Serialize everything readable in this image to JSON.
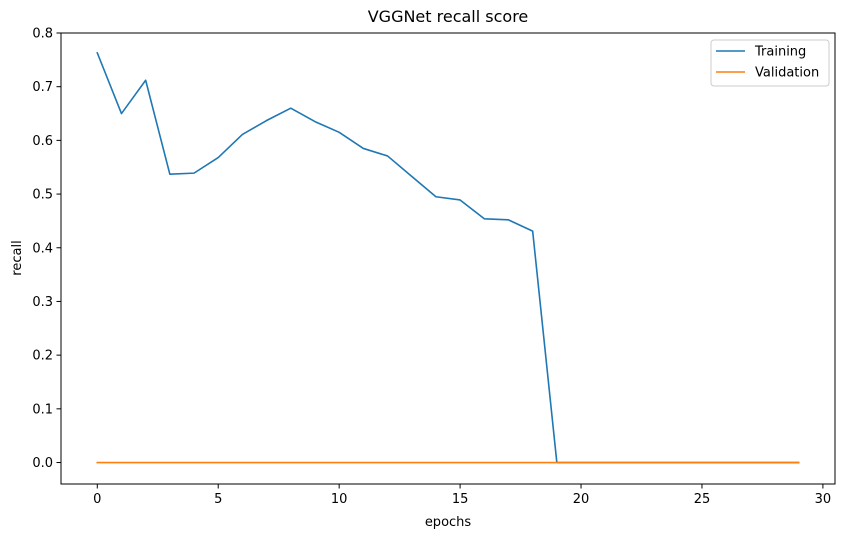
{
  "chart_data": {
    "type": "line",
    "title": "VGGNet recall score",
    "xlabel": "epochs",
    "ylabel": "recall",
    "xlim": [
      -1.5,
      30.5
    ],
    "ylim": [
      -0.04,
      0.8
    ],
    "xticks": [
      0,
      5,
      10,
      15,
      20,
      25,
      30
    ],
    "yticks": [
      0.0,
      0.1,
      0.2,
      0.3,
      0.4,
      0.5,
      0.6,
      0.7,
      0.8
    ],
    "xtick_labels": [
      "0",
      "5",
      "10",
      "15",
      "20",
      "25",
      "30"
    ],
    "ytick_labels": [
      "0.0",
      "0.1",
      "0.2",
      "0.3",
      "0.4",
      "0.5",
      "0.6",
      "0.7",
      "0.8"
    ],
    "grid": false,
    "legend_position": "top-right",
    "series": [
      {
        "name": "Training",
        "color": "#1f77b4",
        "x": [
          0,
          1,
          2,
          3,
          4,
          5,
          6,
          7,
          8,
          9,
          10,
          11,
          12,
          13,
          14,
          15,
          16,
          17,
          18,
          19,
          20,
          21,
          22,
          23,
          24,
          25,
          26,
          27,
          28,
          29
        ],
        "values": [
          0.763,
          0.65,
          0.712,
          0.537,
          0.539,
          0.568,
          0.611,
          0.637,
          0.66,
          0.635,
          0.615,
          0.585,
          0.571,
          0.533,
          0.495,
          0.489,
          0.454,
          0.452,
          0.431,
          0.0,
          0.0,
          0.0,
          0.0,
          0.0,
          0.0,
          0.0,
          0.0,
          0.0,
          0.0,
          0.0
        ]
      },
      {
        "name": "Validation",
        "color": "#ff7f0e",
        "x": [
          0,
          1,
          2,
          3,
          4,
          5,
          6,
          7,
          8,
          9,
          10,
          11,
          12,
          13,
          14,
          15,
          16,
          17,
          18,
          19,
          20,
          21,
          22,
          23,
          24,
          25,
          26,
          27,
          28,
          29
        ],
        "values": [
          0.0,
          0.0,
          0.0,
          0.0,
          0.0,
          0.0,
          0.0,
          0.0,
          0.0,
          0.0,
          0.0,
          0.0,
          0.0,
          0.0,
          0.0,
          0.0,
          0.0,
          0.0,
          0.0,
          0.0,
          0.0,
          0.0,
          0.0,
          0.0,
          0.0,
          0.0,
          0.0,
          0.0,
          0.0,
          0.0
        ]
      }
    ]
  }
}
